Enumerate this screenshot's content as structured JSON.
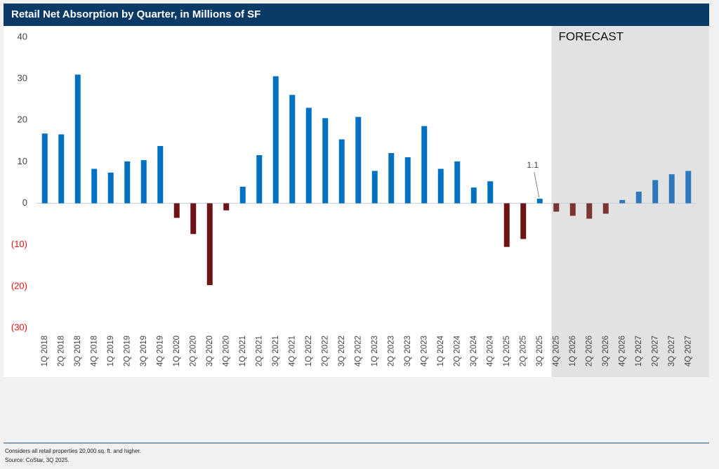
{
  "chart_data": {
    "type": "bar",
    "title": "Retail Net Absorption by Quarter, in Millions of SF",
    "categories": [
      "1Q 2018",
      "2Q 2018",
      "3Q 2018",
      "4Q 2018",
      "1Q 2019",
      "2Q 2019",
      "3Q 2019",
      "4Q 2019",
      "1Q 2020",
      "2Q 2020",
      "3Q 2020",
      "4Q 2020",
      "1Q 2021",
      "2Q 2021",
      "3Q 2021",
      "4Q 2021",
      "1Q 2022",
      "2Q 2022",
      "3Q 2022",
      "4Q 2022",
      "1Q 2023",
      "2Q 2023",
      "3Q 2023",
      "4Q 2023",
      "1Q 2024",
      "2Q 2024",
      "3Q 2024",
      "4Q 2024",
      "1Q 2025",
      "2Q 2025",
      "3Q 2025",
      "4Q 2025",
      "1Q 2026",
      "2Q 2026",
      "3Q 2026",
      "4Q 2026",
      "1Q 2027",
      "2Q 2027",
      "3Q 2027",
      "4Q 2027"
    ],
    "values": [
      16.8,
      16.6,
      31,
      8.3,
      7.4,
      10.1,
      10.4,
      13.8,
      -3.5,
      -7.4,
      -19.7,
      -1.7,
      4.0,
      11.6,
      30.6,
      26.1,
      23.0,
      20.5,
      15.4,
      20.8,
      7.8,
      12.1,
      11.1,
      18.6,
      8.3,
      10.1,
      3.8,
      5.3,
      -10.5,
      -8.6,
      1.1,
      -2.0,
      -3.0,
      -3.7,
      -2.5,
      0.8,
      2.8,
      5.6,
      7.0,
      7.8
    ],
    "colors": {
      "positive": "#0070c0",
      "negative": "#6e1414",
      "forecast_positive": "#2f78bd",
      "forecast_negative": "#7a3434"
    },
    "negative_tick_color": "#e8130f",
    "ylim": [
      -30,
      40
    ],
    "yticks": [
      40,
      30,
      20,
      10,
      0,
      {
        "value": -10,
        "label": "(10)"
      },
      {
        "value": -20,
        "label": "(20)"
      },
      {
        "value": -30,
        "label": "(30)"
      }
    ],
    "forecast": {
      "label": "FORECAST",
      "from_category": "4Q 2025"
    },
    "data_label_categories": [
      "3Q 2025"
    ],
    "footnotes": [
      "Considers all retail properties 20,000 sq. ft. and higher.",
      "Source: CoStar, 3Q 2025."
    ]
  }
}
